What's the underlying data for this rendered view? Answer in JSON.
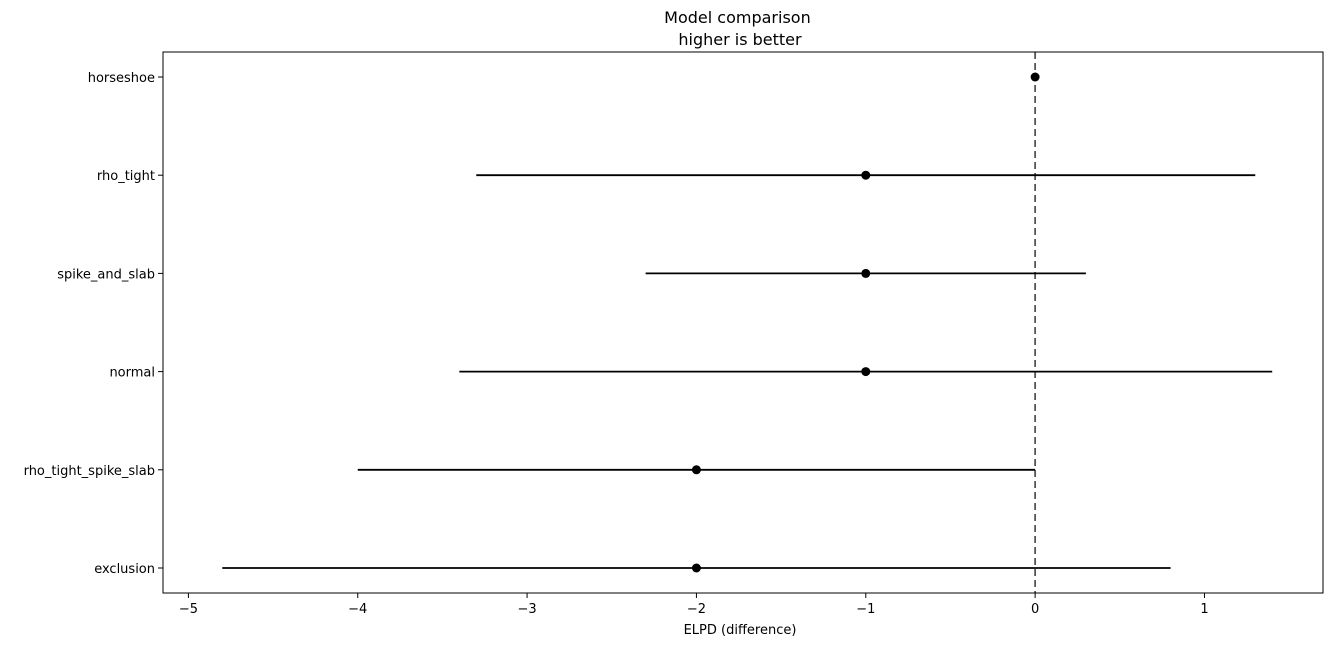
{
  "chart_data": {
    "type": "scatter",
    "title": [
      "Model comparison",
      "higher is better"
    ],
    "xlabel": "ELPD (difference)",
    "ylabel": "",
    "xlim": [
      -5.15,
      1.7
    ],
    "x_ticks": [
      -5,
      -4,
      -3,
      -2,
      -1,
      0,
      1
    ],
    "x_tick_labels": [
      "−5",
      "−4",
      "−3",
      "−2",
      "−1",
      "0",
      "1"
    ],
    "reference_line": {
      "x": 0,
      "style": "dashed",
      "color": "#555555"
    },
    "grid": false,
    "legend": "none",
    "marker_color": "#000000",
    "models": [
      {
        "label": "horseshoe",
        "value": 0,
        "low": 0,
        "high": 0
      },
      {
        "label": "rho_tight",
        "value": -1,
        "low": -3.3,
        "high": 1.3
      },
      {
        "label": "spike_and_slab",
        "value": -1,
        "low": -2.3,
        "high": 0.3
      },
      {
        "label": "normal",
        "value": -1,
        "low": -3.4,
        "high": 1.4
      },
      {
        "label": "rho_tight_spike_slab",
        "value": -2,
        "low": -4.0,
        "high": 0.0
      },
      {
        "label": "exclusion",
        "value": -2,
        "low": -4.8,
        "high": 0.8
      }
    ]
  }
}
